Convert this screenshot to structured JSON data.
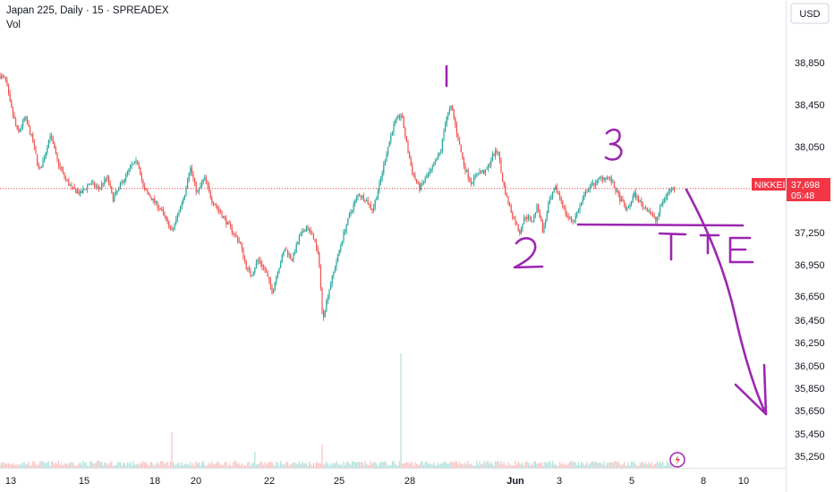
{
  "header": {
    "title": "Japan 225, Daily · 15 · SPREADEX",
    "indicator": "Vol"
  },
  "currency_button": {
    "label": "USD"
  },
  "price_tag": {
    "symbol": "NIKKEI",
    "price": "37,698",
    "countdown": "05:48",
    "color": "#f23645"
  },
  "annotations": {
    "labels": [
      "1",
      "2",
      "3",
      "T",
      "T",
      "E"
    ],
    "color": "#9c27b0",
    "support_level": 37330
  },
  "chart_data": {
    "type": "candlestick",
    "symbol": "Japan 225",
    "interval": "Daily",
    "source": "SPREADEX",
    "last_price": 37698,
    "ylim": [
      35150,
      39120
    ],
    "y_ticks": [
      "38,850",
      "38,450",
      "38,050",
      "37,650",
      "37,250",
      "36,950",
      "36,650",
      "36,450",
      "36,250",
      "36,050",
      "35,850",
      "35,650",
      "35,450",
      "35,250"
    ],
    "y_tick_values": [
      38850,
      38450,
      38050,
      37650,
      37250,
      36950,
      36650,
      36450,
      36250,
      36050,
      35850,
      35650,
      35450,
      35250
    ],
    "x_ticks": [
      "13",
      "15",
      "18",
      "20",
      "22",
      "25",
      "28",
      "Jun",
      "3",
      "5",
      "8",
      "10"
    ],
    "x_tick_bold": [
      "Jun"
    ],
    "grid": false,
    "price_path": [
      [
        0,
        38730
      ],
      [
        0.3,
        38700
      ],
      [
        0.6,
        38450
      ],
      [
        1.0,
        38200
      ],
      [
        1.4,
        38350
      ],
      [
        1.8,
        38150
      ],
      [
        2.2,
        37850
      ],
      [
        2.5,
        38000
      ],
      [
        2.8,
        38200
      ],
      [
        3.2,
        37950
      ],
      [
        3.6,
        37800
      ],
      [
        4.0,
        37700
      ],
      [
        4.5,
        37650
      ],
      [
        5.0,
        37750
      ],
      [
        5.5,
        37700
      ],
      [
        6.0,
        37800
      ],
      [
        6.3,
        37600
      ],
      [
        6.8,
        37750
      ],
      [
        7.3,
        37900
      ],
      [
        7.7,
        37950
      ],
      [
        8.0,
        37700
      ],
      [
        8.5,
        37600
      ],
      [
        9.0,
        37500
      ],
      [
        9.3,
        37400
      ],
      [
        9.6,
        37300
      ],
      [
        10.0,
        37500
      ],
      [
        10.3,
        37650
      ],
      [
        10.6,
        37900
      ],
      [
        11.0,
        37650
      ],
      [
        11.4,
        37800
      ],
      [
        11.8,
        37600
      ],
      [
        12.2,
        37500
      ],
      [
        12.6,
        37400
      ],
      [
        13.0,
        37300
      ],
      [
        13.4,
        37200
      ],
      [
        13.7,
        37000
      ],
      [
        14.0,
        36900
      ],
      [
        14.4,
        37050
      ],
      [
        14.8,
        36950
      ],
      [
        15.2,
        36750
      ],
      [
        15.5,
        36950
      ],
      [
        15.9,
        37150
      ],
      [
        16.3,
        37050
      ],
      [
        16.7,
        37250
      ],
      [
        17.1,
        37350
      ],
      [
        17.5,
        37250
      ],
      [
        17.8,
        37050
      ],
      [
        18.0,
        36500
      ],
      [
        18.4,
        36800
      ],
      [
        18.8,
        37050
      ],
      [
        19.2,
        37300
      ],
      [
        19.6,
        37500
      ],
      [
        20.0,
        37650
      ],
      [
        20.4,
        37600
      ],
      [
        20.8,
        37500
      ],
      [
        21.2,
        37750
      ],
      [
        21.6,
        38050
      ],
      [
        22.0,
        38300
      ],
      [
        22.4,
        38380
      ],
      [
        22.7,
        38100
      ],
      [
        23.0,
        37850
      ],
      [
        23.4,
        37700
      ],
      [
        23.8,
        37800
      ],
      [
        24.2,
        37900
      ],
      [
        24.6,
        38050
      ],
      [
        24.9,
        38350
      ],
      [
        25.2,
        38450
      ],
      [
        25.5,
        38200
      ],
      [
        25.9,
        37900
      ],
      [
        26.3,
        37750
      ],
      [
        26.7,
        37850
      ],
      [
        27.1,
        37850
      ],
      [
        27.5,
        38000
      ],
      [
        27.8,
        38050
      ],
      [
        28.0,
        37800
      ],
      [
        28.3,
        37600
      ],
      [
        28.6,
        37450
      ],
      [
        29.0,
        37300
      ],
      [
        29.3,
        37450
      ],
      [
        29.7,
        37400
      ],
      [
        30.0,
        37550
      ],
      [
        30.3,
        37300
      ],
      [
        30.6,
        37550
      ],
      [
        31.0,
        37700
      ],
      [
        31.3,
        37600
      ],
      [
        31.6,
        37450
      ],
      [
        32.0,
        37400
      ],
      [
        32.4,
        37550
      ],
      [
        32.8,
        37700
      ],
      [
        33.2,
        37750
      ],
      [
        33.6,
        37800
      ],
      [
        34.0,
        37800
      ],
      [
        34.3,
        37700
      ],
      [
        34.6,
        37600
      ],
      [
        35.0,
        37500
      ],
      [
        35.4,
        37650
      ],
      [
        35.8,
        37550
      ],
      [
        36.2,
        37500
      ],
      [
        36.6,
        37400
      ],
      [
        36.9,
        37550
      ],
      [
        37.2,
        37650
      ],
      [
        37.5,
        37700
      ],
      [
        37.7,
        37698
      ]
    ]
  }
}
